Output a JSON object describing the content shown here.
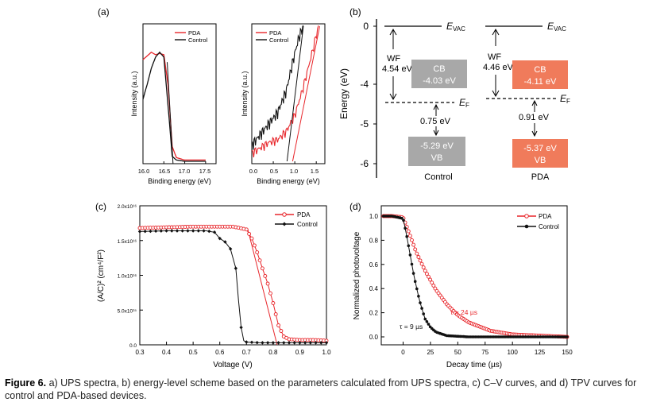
{
  "colors": {
    "pda": "#e8262b",
    "control": "#111111",
    "box_control": "#a8a8a8",
    "box_pda": "#f07b5b"
  },
  "panel_a": {
    "label": "(a)",
    "left": {
      "xlabel": "Binding energy (eV)",
      "ylabel": "Intensity (a.u.)",
      "xticks": [
        "16.0",
        "16.5",
        "17.0",
        "17.5"
      ],
      "legend": [
        "PDA",
        "Control"
      ]
    },
    "right": {
      "xlabel": "Binding energy (eV)",
      "ylabel": "Intensity (a.u.)",
      "xticks": [
        "0.0",
        "0.5",
        "1.0",
        "1.5"
      ],
      "legend": [
        "PDA",
        "Control"
      ]
    }
  },
  "panel_b": {
    "label": "(b)",
    "ylabel": "Energy (eV)",
    "yticks": [
      "0",
      "-4",
      "-5",
      "-6"
    ],
    "evac_main": "E",
    "evac_sub": "VAC",
    "ef_main": "E",
    "ef_sub": "F",
    "control": {
      "wf_label": "WF",
      "wf_value": "4.54 eV",
      "cb_label": "CB",
      "cb_value": "-4.03 eV",
      "ef_gap": "0.75 eV",
      "vb_value": "-5.29 eV",
      "vb_label": "VB",
      "name": "Control"
    },
    "pda": {
      "wf_label": "WF",
      "wf_value": "4.46 eV",
      "cb_label": "CB",
      "cb_value": "-4.11 eV",
      "ef_gap": "0.91 eV",
      "vb_value": "-5.37 eV",
      "vb_label": "VB",
      "name": "PDA"
    }
  },
  "panel_c": {
    "label": "(c)",
    "xlabel": "Voltage (V)",
    "ylabel": "(A/C)² (cm⁴/F²)",
    "xticks": [
      "0.3",
      "0.4",
      "0.5",
      "0.6",
      "0.7",
      "0.8",
      "0.9",
      "1.0"
    ],
    "yticks": [
      "0.0",
      "5.0x10¹⁵",
      "1.0x10¹⁶",
      "1.5x10¹⁶",
      "2.0x10¹⁶"
    ],
    "legend": [
      "PDA",
      "Control"
    ]
  },
  "panel_d": {
    "label": "(d)",
    "xlabel": "Decay time (µs)",
    "ylabel": "Normalized photovoltage",
    "xticks": [
      "0",
      "25",
      "50",
      "75",
      "100",
      "125",
      "150"
    ],
    "yticks": [
      "0.0",
      "0.2",
      "0.4",
      "0.6",
      "0.8",
      "1.0"
    ],
    "legend": [
      "PDA",
      "Control"
    ],
    "tau_pda": "τ = 24 µs",
    "tau_control": "τ = 9 µs"
  },
  "caption": {
    "prefix": "Figure 6.",
    "text": " a) UPS spectra, b) energy-level scheme based on the parameters calculated from UPS spectra, c) C–V curves, and d) TPV curves for control and PDA-based devices."
  },
  "chart_data": [
    {
      "type": "line",
      "panel": "c",
      "xlabel": "Voltage (V)",
      "ylabel": "(A/C)² (cm⁴/F²)",
      "xlim": [
        0.3,
        1.0
      ],
      "ylim": [
        0,
        2e+16
      ],
      "series": [
        {
          "name": "PDA",
          "x": [
            0.3,
            0.4,
            0.5,
            0.6,
            0.65,
            0.7,
            0.72,
            0.74,
            0.76,
            0.78,
            0.8,
            0.82,
            0.84,
            0.86,
            0.9,
            0.95,
            1.0
          ],
          "y": [
            1.68e+16,
            1.69e+16,
            1.7e+16,
            1.7e+16,
            1.7e+16,
            1.66e+16,
            1.53e+16,
            1.33e+16,
            1.1e+16,
            8800000000000000.0,
            6000000000000000.0,
            2800000000000000.0,
            1200000000000000.0,
            800000000000000.0,
            700000000000000.0,
            700000000000000.0,
            600000000000000.0
          ]
        },
        {
          "name": "Control",
          "x": [
            0.3,
            0.4,
            0.5,
            0.55,
            0.58,
            0.6,
            0.62,
            0.64,
            0.66,
            0.67,
            0.68,
            0.69,
            0.7,
            0.75,
            0.8,
            0.9,
            1.0
          ],
          "y": [
            1.63e+16,
            1.64e+16,
            1.64e+16,
            1.64e+16,
            1.62e+16,
            1.53e+16,
            1.48e+16,
            1.38e+16,
            1.1e+16,
            6500000000000000.0,
            2500000000000000.0,
            600000000000000.0,
            400000000000000.0,
            300000000000000.0,
            300000000000000.0,
            300000000000000.0,
            300000000000000.0
          ]
        }
      ]
    },
    {
      "type": "line",
      "panel": "d",
      "xlabel": "Decay time (µs)",
      "ylabel": "Normalized photovoltage",
      "xlim": [
        -20,
        150
      ],
      "ylim": [
        0,
        1.05
      ],
      "series": [
        {
          "name": "PDA",
          "x": [
            -18,
            -10,
            0,
            3,
            8,
            12,
            20,
            30,
            40,
            50,
            60,
            80,
            100,
            125,
            150
          ],
          "y": [
            1.0,
            1.0,
            0.99,
            0.92,
            0.8,
            0.7,
            0.55,
            0.39,
            0.27,
            0.18,
            0.12,
            0.05,
            0.02,
            0.01,
            0.0
          ]
        },
        {
          "name": "Control",
          "x": [
            -18,
            -10,
            0,
            3,
            6,
            10,
            15,
            20,
            25,
            30,
            40,
            60,
            100,
            150
          ],
          "y": [
            1.0,
            1.0,
            0.98,
            0.85,
            0.7,
            0.5,
            0.3,
            0.15,
            0.08,
            0.04,
            0.01,
            0.0,
            0.0,
            0.0
          ]
        }
      ]
    },
    {
      "type": "line",
      "panel": "a-left",
      "xlabel": "Binding energy (eV)",
      "ylabel": "Intensity (a.u.)",
      "xlim": [
        16.0,
        17.75
      ],
      "series": [
        {
          "name": "PDA",
          "x": [
            16.0,
            16.1,
            16.2,
            16.3,
            16.4,
            16.5,
            16.6,
            16.7,
            16.8,
            16.9,
            17.0,
            17.5
          ],
          "y": [
            0.82,
            0.85,
            0.88,
            0.86,
            0.87,
            0.86,
            0.62,
            0.12,
            0.03,
            0.02,
            0.01,
            0.01
          ]
        },
        {
          "name": "Control",
          "x": [
            16.0,
            16.1,
            16.2,
            16.3,
            16.4,
            16.5,
            16.6,
            16.7,
            16.8,
            17.0,
            17.5
          ],
          "y": [
            0.5,
            0.62,
            0.75,
            0.84,
            0.88,
            0.84,
            0.45,
            0.04,
            0.01,
            0.0,
            0.0
          ]
        }
      ]
    },
    {
      "type": "line",
      "panel": "a-right",
      "xlabel": "Binding energy (eV)",
      "ylabel": "Intensity (a.u.)",
      "xlim": [
        0.0,
        1.7
      ],
      "series": [
        {
          "name": "PDA",
          "x": [
            0.0,
            0.2,
            0.4,
            0.6,
            0.8,
            1.0,
            1.2,
            1.4,
            1.55
          ],
          "y": [
            0.06,
            0.1,
            0.14,
            0.16,
            0.22,
            0.34,
            0.55,
            0.8,
            1.0
          ]
        },
        {
          "name": "Control",
          "x": [
            0.0,
            0.2,
            0.4,
            0.6,
            0.8,
            0.9,
            1.0,
            1.1,
            1.2
          ],
          "y": [
            0.12,
            0.2,
            0.28,
            0.36,
            0.52,
            0.66,
            0.8,
            0.92,
            1.0
          ]
        }
      ]
    }
  ]
}
